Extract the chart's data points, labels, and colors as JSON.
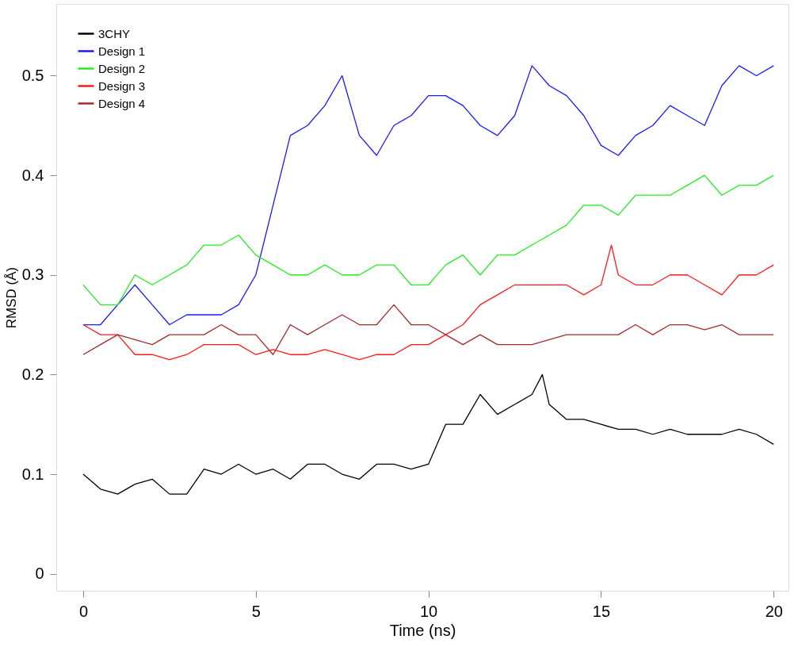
{
  "chart_data": {
    "type": "line",
    "xlabel": "Time (ns)",
    "ylabel": "RMSD (Å)",
    "xlim": [
      -0.78,
      20.43
    ],
    "ylim": [
      -0.017,
      0.572
    ],
    "xticks": [
      0,
      5,
      10,
      15,
      20
    ],
    "yticks": [
      0,
      0.1,
      0.2,
      0.3,
      0.4,
      0.5
    ],
    "grid": false,
    "legend": "top left",
    "marker": "none",
    "line_style": "solid",
    "series": [
      {
        "name": "3CHY",
        "color": "#000000",
        "x": [
          0,
          0.5,
          1,
          1.5,
          2,
          2.5,
          3,
          3.5,
          4,
          4.5,
          5,
          5.5,
          6,
          6.5,
          7,
          7.5,
          8,
          8.5,
          9,
          9.5,
          10,
          10.5,
          11,
          11.5,
          12,
          12.5,
          13,
          13.3,
          13.5,
          14,
          14.5,
          15,
          15.5,
          16,
          16.5,
          17,
          17.5,
          18,
          18.5,
          19,
          19.5,
          20
        ],
        "values": [
          0.1,
          0.085,
          0.08,
          0.09,
          0.095,
          0.08,
          0.08,
          0.105,
          0.1,
          0.11,
          0.1,
          0.105,
          0.095,
          0.11,
          0.11,
          0.1,
          0.095,
          0.11,
          0.11,
          0.105,
          0.11,
          0.15,
          0.15,
          0.18,
          0.16,
          0.17,
          0.18,
          0.2,
          0.17,
          0.155,
          0.155,
          0.15,
          0.145,
          0.145,
          0.14,
          0.145,
          0.14,
          0.14,
          0.14,
          0.145,
          0.14,
          0.13
        ]
      },
      {
        "name": "Design 1",
        "color": "#1a1aff",
        "x": [
          0,
          0.5,
          1,
          1.5,
          2,
          2.5,
          3,
          3.5,
          4,
          4.5,
          5,
          5.5,
          6,
          6.5,
          7,
          7.5,
          8,
          8.5,
          9,
          9.5,
          10,
          10.5,
          11,
          11.5,
          12,
          12.5,
          13,
          13.5,
          14,
          14.5,
          15,
          15.5,
          16,
          16.5,
          17,
          17.5,
          18,
          18.5,
          19,
          19.5,
          20
        ],
        "values": [
          0.25,
          0.25,
          0.27,
          0.29,
          0.27,
          0.25,
          0.26,
          0.26,
          0.26,
          0.27,
          0.3,
          0.37,
          0.44,
          0.45,
          0.47,
          0.5,
          0.44,
          0.42,
          0.45,
          0.46,
          0.48,
          0.48,
          0.47,
          0.45,
          0.44,
          0.46,
          0.51,
          0.49,
          0.48,
          0.46,
          0.43,
          0.42,
          0.44,
          0.45,
          0.47,
          0.46,
          0.45,
          0.49,
          0.51,
          0.5,
          0.51
        ]
      },
      {
        "name": "Design 2",
        "color": "#22ee22",
        "x": [
          0,
          0.5,
          1,
          1.5,
          2,
          2.5,
          3,
          3.5,
          4,
          4.5,
          5,
          5.5,
          6,
          6.5,
          7,
          7.5,
          8,
          8.5,
          9,
          9.5,
          10,
          10.5,
          11,
          11.5,
          12,
          12.5,
          13,
          13.5,
          14,
          14.5,
          15,
          15.5,
          16,
          16.5,
          17,
          17.5,
          18,
          18.5,
          19,
          19.5,
          20
        ],
        "values": [
          0.29,
          0.27,
          0.27,
          0.3,
          0.29,
          0.3,
          0.31,
          0.33,
          0.33,
          0.34,
          0.32,
          0.31,
          0.3,
          0.3,
          0.31,
          0.3,
          0.3,
          0.31,
          0.31,
          0.29,
          0.29,
          0.31,
          0.32,
          0.3,
          0.32,
          0.32,
          0.33,
          0.34,
          0.35,
          0.37,
          0.37,
          0.36,
          0.38,
          0.38,
          0.38,
          0.39,
          0.4,
          0.38,
          0.39,
          0.39,
          0.4
        ]
      },
      {
        "name": "Design 3",
        "color": "#ff1a1a",
        "x": [
          0,
          0.5,
          1,
          1.5,
          2,
          2.5,
          3,
          3.5,
          4,
          4.5,
          5,
          5.5,
          6,
          6.5,
          7,
          7.5,
          8,
          8.5,
          9,
          9.5,
          10,
          10.5,
          11,
          11.5,
          12,
          12.5,
          13,
          13.5,
          14,
          14.5,
          15,
          15.3,
          15.5,
          16,
          16.5,
          17,
          17.5,
          18,
          18.5,
          19,
          19.5,
          20
        ],
        "values": [
          0.25,
          0.24,
          0.24,
          0.22,
          0.22,
          0.215,
          0.22,
          0.23,
          0.23,
          0.23,
          0.22,
          0.225,
          0.22,
          0.22,
          0.225,
          0.22,
          0.215,
          0.22,
          0.22,
          0.23,
          0.23,
          0.24,
          0.25,
          0.27,
          0.28,
          0.29,
          0.29,
          0.29,
          0.29,
          0.28,
          0.29,
          0.33,
          0.3,
          0.29,
          0.29,
          0.3,
          0.3,
          0.29,
          0.28,
          0.3,
          0.3,
          0.31
        ]
      },
      {
        "name": "Design 4",
        "color": "#a52a2a",
        "x": [
          0,
          0.5,
          1,
          1.5,
          2,
          2.5,
          3,
          3.5,
          4,
          4.5,
          5,
          5.5,
          6,
          6.5,
          7,
          7.5,
          8,
          8.5,
          9,
          9.5,
          10,
          10.5,
          11,
          11.5,
          12,
          12.5,
          13,
          13.5,
          14,
          14.5,
          15,
          15.5,
          16,
          16.5,
          17,
          17.5,
          18,
          18.5,
          19,
          19.5,
          20
        ],
        "values": [
          0.22,
          0.23,
          0.24,
          0.235,
          0.23,
          0.24,
          0.24,
          0.24,
          0.25,
          0.24,
          0.24,
          0.22,
          0.25,
          0.24,
          0.25,
          0.26,
          0.25,
          0.25,
          0.27,
          0.25,
          0.25,
          0.24,
          0.23,
          0.24,
          0.23,
          0.23,
          0.23,
          0.235,
          0.24,
          0.24,
          0.24,
          0.24,
          0.25,
          0.24,
          0.25,
          0.25,
          0.245,
          0.25,
          0.24,
          0.24,
          0.24
        ]
      }
    ]
  }
}
